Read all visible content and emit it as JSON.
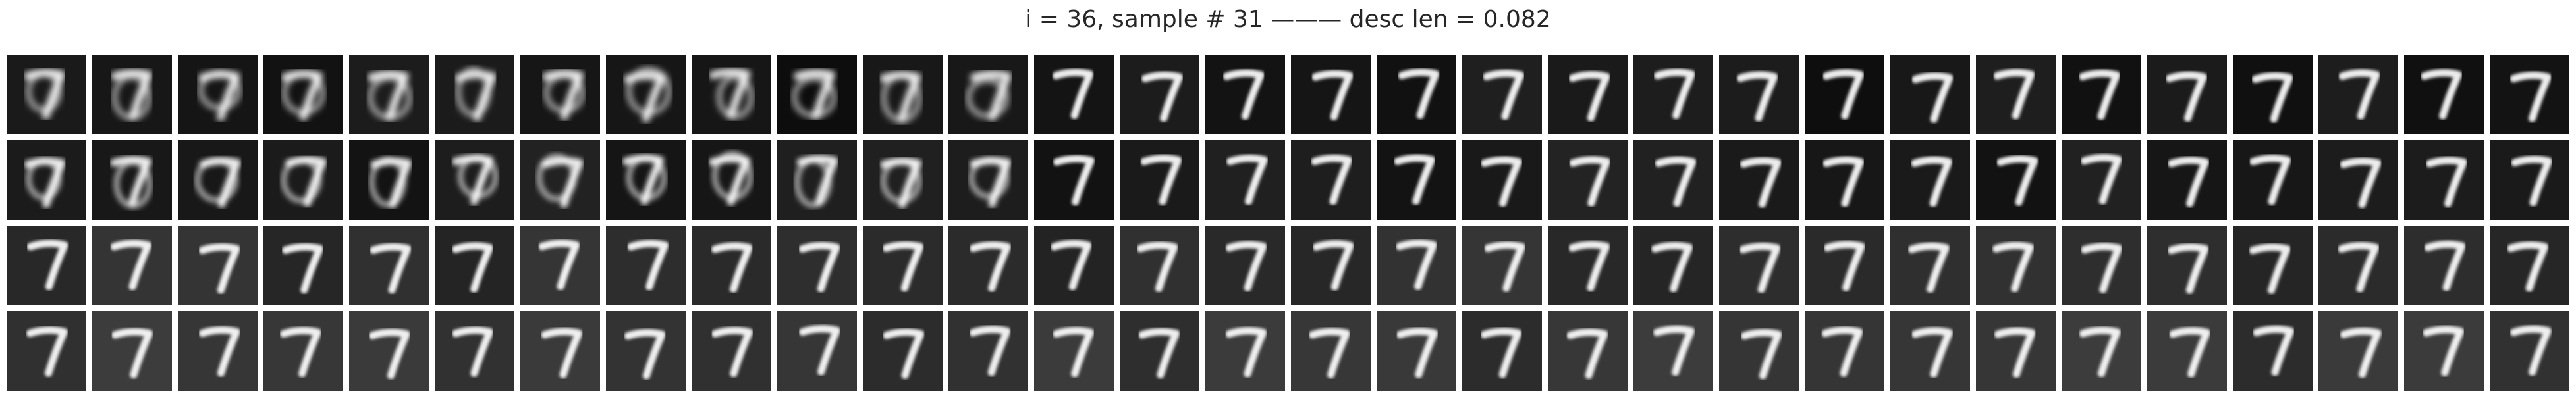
{
  "title": "i = 36, sample # 31 ——— desc len = 0.082",
  "grid": {
    "rows": 4,
    "cols": 30,
    "background": "#1c1c1c",
    "digit_color": "#ffffff"
  }
}
